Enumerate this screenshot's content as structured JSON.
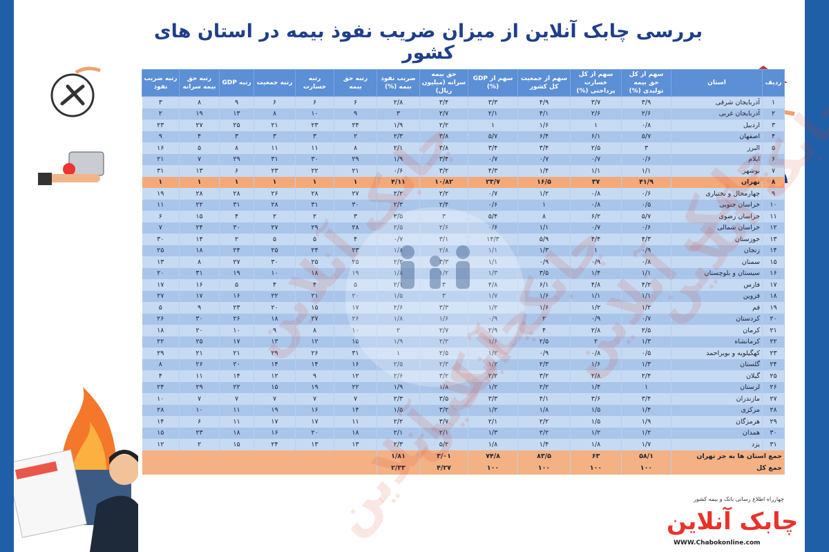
{
  "title": "بررسی چابک آنلاین از میزان ضریب نفوذ بیمه در استان های کشور",
  "table": {
    "header": [
      "ردیف",
      "استان",
      "سهم از کل حق بیمه تولیدی (%)",
      "سهم از کل خسارت پرداختی (%)",
      "سهم از جمعیت کل کشور",
      "سهم از GDP (%)",
      "حق بیمه سرانه (میلیون ریال)",
      "ضریب نفوذ بیمه (%)",
      "رتبه حق بیمه",
      "رتبه خسارت",
      "رتبه جمعیت",
      "رتبه GDP",
      "رتبه حق بیمه سرانه",
      "رتبه ضریب نفوذ"
    ],
    "rows": [
      [
        "۱",
        "آذربایجان شرقی",
        "۳/۹",
        "۳/۷",
        "۴/۹",
        "۳/۳",
        "۳/۴",
        "۲/۸",
        "۶",
        "۶",
        "۶",
        "۹",
        "۸",
        "۳"
      ],
      [
        "۲",
        "آذربایجان غربی",
        "۲/۶",
        "۲/۶",
        "۴/۱",
        "۲/۱",
        "۲/۷",
        "۳",
        "۹",
        "۱۰",
        "۸",
        "۱۳",
        "۱۹",
        "۲"
      ],
      [
        "۳",
        "اردبیل",
        "۰/۸",
        "۱",
        "۱/۶",
        "۱",
        "۲/۲",
        "۱/۹",
        "۲۴",
        "۲۳",
        "۲۱",
        "۲۵",
        "۲۷",
        "۲۳"
      ],
      [
        "۴",
        "اصفهان",
        "۵/۷",
        "۶/۱",
        "۶/۴",
        "۵/۷",
        "۳/۸",
        "۲/۳",
        "۲",
        "۳",
        "۳",
        "۳",
        "۴",
        "۹"
      ],
      [
        "۵",
        "البرز",
        "۳",
        "۲/۵",
        "۳/۴",
        "۳/۴",
        "۳/۸",
        "۲/۱",
        "۸",
        "۱۱",
        "۱۱",
        "۸",
        "۵",
        "۱۶"
      ],
      [
        "۶",
        "ایلام",
        "۰/۶",
        "۰/۷",
        "۰/۷",
        "۰/۷",
        "۳/۴",
        "۱/۹",
        "۲۹",
        "۳۰",
        "۳۱",
        "۲۹",
        "۷",
        "۲۱"
      ],
      [
        "۷",
        "بوشهر",
        "۱/۱",
        "۱/۱",
        "۱/۴",
        "۴/۳",
        "۳/۲",
        "۰/۶",
        "۲۱",
        "۲۲",
        "۲۳",
        "۶",
        "۱۳",
        "۳۱"
      ],
      [
        "۸",
        "تهران",
        "۴۱/۹",
        "۳۷",
        "۱۶/۵",
        "۲۳/۷",
        "۱۰/۸۲",
        "۴/۱۱",
        "۱",
        "۱",
        "۱",
        "۱",
        "۱",
        "۱"
      ],
      [
        "۹",
        "چهارمحال و بختیاری",
        "۰/۶",
        "۰/۸",
        "۱/۲",
        "۰/۷",
        "۲/۲",
        "۲/۲",
        "۲۷",
        "۲۸",
        "۲۶",
        "۲۸",
        "۲۸",
        "۱۹"
      ],
      [
        "۱۰",
        "خراسان جنوبی",
        "۰/۵",
        "۰/۸",
        "۱",
        "۰/۶",
        "۲/۴",
        "۲/۳",
        "۳۰",
        "۳۱",
        "۲۸",
        "۳۱",
        "۲۲",
        "۱۱"
      ],
      [
        "۱۱",
        "خراسان رضوی",
        "۵/۷",
        "۶/۲",
        "۸",
        "۵/۴",
        "۳",
        "۲/۵",
        "۳",
        "۲",
        "۲",
        "۴",
        "۱۵",
        "۶"
      ],
      [
        "۱۲",
        "خراسان شمالی",
        "۰/۶",
        "۰/۷",
        "۱/۱",
        "۰/۶",
        "۲/۶",
        "۲/۵",
        "۲۸",
        "۲۹",
        "۲۷",
        "۳۰",
        "۲۴",
        "۷"
      ],
      [
        "۱۳",
        "خوزستان",
        "۴/۳",
        "۴/۴",
        "۵/۹",
        "۱۴/۳",
        "۳/۱",
        "۰/۷",
        "۴",
        "۵",
        "۵",
        "۲",
        "۱۴",
        "۳۰"
      ],
      [
        "۱۴",
        "زنجان",
        "۰/۹",
        "۱",
        "۱/۳",
        "۱/۱",
        "۲/۸",
        "۱/۸",
        "۲۳",
        "۲۴",
        "۲۵",
        "۲۴",
        "۱۸",
        "۲۵"
      ],
      [
        "۱۵",
        "سمنان",
        "۰/۸",
        "۰/۹",
        "۰/۹",
        "۱/۱",
        "۳/۳",
        "۲/۲",
        "۲۵",
        "۲۵",
        "۳۰",
        "۲۷",
        "۸",
        "۱۳"
      ],
      [
        "۱۶",
        "سیستان و بلوچستان",
        "۱/۱",
        "۱/۴",
        "۳/۵",
        "۱/۳",
        "۱/۲",
        "۱/۸",
        "۱۹",
        "۱۸",
        "۱۰",
        "۱۹",
        "۳۱",
        "۲۰"
      ],
      [
        "۱۷",
        "فارس",
        "۴/۲",
        "۴/۸",
        "۶/۱",
        "۴/۸",
        "۳",
        "۲/۱",
        "۵",
        "۴",
        "۴",
        "۵",
        "۱۶",
        "۱۷"
      ],
      [
        "۱۸",
        "قزوین",
        "۱/۱",
        "۱/۱",
        "۱/۶",
        "۱/۷",
        "۳",
        "۱/۵",
        "۲۰",
        "۲۱",
        "۲۲",
        "۱۶",
        "۱۷",
        "۲۷"
      ],
      [
        "۱۹",
        "قم",
        "۱/۲",
        "۱/۲",
        "۱/۶",
        "۱/۲",
        "۳/۳",
        "۲/۶",
        "۱۷",
        "۱۵",
        "۲۰",
        "۲۳",
        "۹",
        "۵"
      ],
      [
        "۲۰",
        "کردستان",
        "۰/۷",
        "۰/۹",
        "۲",
        "۰/۹",
        "۱/۶",
        "۱/۸",
        "۲۶",
        "۲۷",
        "۱۸",
        "۲۶",
        "۳۰",
        "۲۶"
      ],
      [
        "۲۱",
        "کرمان",
        "۲/۵",
        "۲/۸",
        "۴",
        "۲/۹",
        "۲/۷",
        "۲",
        "۱۰",
        "۸",
        "۹",
        "۱۰",
        "۲۰",
        "۱۸"
      ],
      [
        "۲۲",
        "کرمانشاه",
        "۱/۳",
        "۲",
        "۲/۵",
        "۱/۶",
        "۲/۲",
        "۱/۹",
        "۱۵",
        "۱۲",
        "۱۳",
        "۱۷",
        "۲۵",
        "۲۲"
      ],
      [
        "۲۳",
        "کهگیلویه و بویراحمد",
        "۰/۵",
        "۰/۸",
        "۰/۹",
        "۱/۲",
        "۲/۵",
        "۱",
        "۳۱",
        "۲۶",
        "۲۹",
        "۲۱",
        "۲۱",
        "۲۹"
      ],
      [
        "۲۴",
        "گلستان",
        "۱/۳",
        "۱/۶",
        "۲/۳",
        "۱/۲",
        "۲/۳",
        "۲/۵",
        "۱۶",
        "۱۴",
        "۱۴",
        "۲۰",
        "۲۶",
        "۸"
      ],
      [
        "۲۵",
        "گیلان",
        "۲/۴",
        "۲/۸",
        "۳/۲",
        "۲/۲",
        "۳/۲",
        "۲/۶",
        "۱۲",
        "۹",
        "۱۲",
        "۱۴",
        "۱۱",
        "۴"
      ],
      [
        "۲۶",
        "لرستان",
        "۱",
        "۱/۴",
        "۲/۲",
        "۱/۲",
        "۱/۸",
        "۱/۹",
        "۲۲",
        "۱۹",
        "۱۵",
        "۲۲",
        "۲۹",
        "۲۴"
      ],
      [
        "۲۷",
        "مازندران",
        "۳/۴",
        "۳/۶",
        "۴/۱",
        "۳/۳",
        "۳/۵",
        "۲/۳",
        "۷",
        "۷",
        "۷",
        "۷",
        "۷",
        "۱۰"
      ],
      [
        "۲۸",
        "مرکزی",
        "۱/۴",
        "۱/۵",
        "۱/۸",
        "۱/۲",
        "۳/۲",
        "۱/۵",
        "۱۴",
        "۱۶",
        "۱۹",
        "۱۱",
        "۱۰",
        "۲۸"
      ],
      [
        "۲۹",
        "هرمزگان",
        "۱/۹",
        "۱/۵",
        "۲/۲",
        "۲/۱",
        "۳/۷",
        "۲/۲",
        "۱۱",
        "۱۷",
        "۱۷",
        "۱۱",
        "۶",
        "۱۴"
      ],
      [
        "۳۰",
        "همدان",
        "۱/۲",
        "۱/۲",
        "۲/۲",
        "۱/۳",
        "۲/۱",
        "۲/۱",
        "۱۸",
        "۲۰",
        "۱۶",
        "۱۸",
        "۲۳",
        "۱۵"
      ],
      [
        "۳۱",
        "یزد",
        "۱/۷",
        "۱/۸",
        "۱/۴",
        "۱/۸",
        "۵/۲",
        "۲/۳",
        "۱۳",
        "۱۳",
        "۲۴",
        "۱۵",
        "۲",
        "۱۲"
      ]
    ],
    "summary": [
      {
        "label": "جمع استان ها به جز تهران",
        "cells": [
          "۵۸/۱",
          "۶۳",
          "۸۳/۵",
          "۷۴/۸",
          "۳/۰۱",
          "۱/۸۱"
        ]
      },
      {
        "label": "جمع کل",
        "cells": [
          "۱۰۰",
          "۱۰۰",
          "۱۰۰",
          "۱۰۰",
          "۴/۲۷",
          "۲/۳۳"
        ]
      }
    ]
  },
  "watermark": "چابک آنلاین",
  "footer": {
    "tagline": "چهارراه اطلاع رسانی بانک و بیمه کشور",
    "logo": "چابک آنلاین",
    "website": "WWW.Chabokonline.com"
  }
}
